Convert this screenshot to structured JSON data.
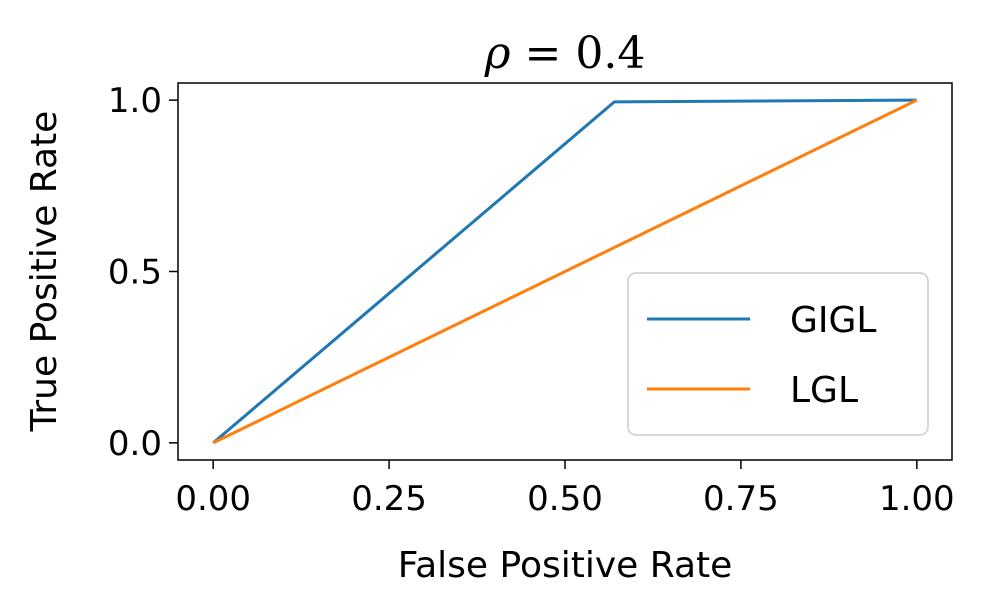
{
  "chart_data": {
    "type": "line",
    "title_symbol": "ρ",
    "title_value": " = 0.4",
    "xlabel": "False Positive Rate",
    "ylabel": "True Positive Rate",
    "xlim": [
      -0.05,
      1.05
    ],
    "ylim": [
      -0.05,
      1.05
    ],
    "xticks": [
      0.0,
      0.25,
      0.5,
      0.75,
      1.0
    ],
    "xtick_labels": [
      "0.00",
      "0.25",
      "0.50",
      "0.75",
      "1.00"
    ],
    "yticks": [
      0.0,
      0.5,
      1.0
    ],
    "ytick_labels": [
      "0.0",
      "0.5",
      "1.0"
    ],
    "grid": false,
    "legend_position": "lower-right",
    "series": [
      {
        "name": "GIGL",
        "color": "#1f77b4",
        "x": [
          0.0,
          0.57,
          1.0
        ],
        "y": [
          0.0,
          0.995,
          1.0
        ]
      },
      {
        "name": "LGL",
        "color": "#ff7f0e",
        "x": [
          0.0,
          1.0
        ],
        "y": [
          0.0,
          1.0
        ]
      }
    ]
  }
}
